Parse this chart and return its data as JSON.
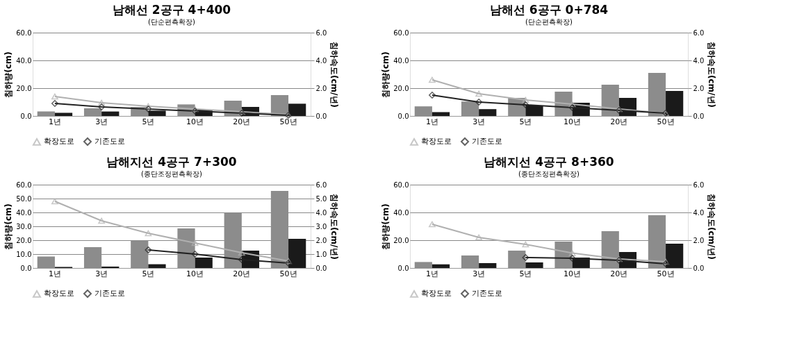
{
  "chart_data": [
    {
      "type": "bar",
      "title": "남해선 2공구 4+400",
      "subtitle": "(단순편측확장)",
      "ylabel": "침하량(cm)",
      "y2label": "침하속도(cm/년)",
      "categories": [
        "1년",
        "3년",
        "5년",
        "10년",
        "20년",
        "50년"
      ],
      "ylim": [
        0,
        60
      ],
      "yticks": [
        {
          "value": 0,
          "label": "0.0"
        },
        {
          "value": 20,
          "label": "20.0"
        },
        {
          "value": 40,
          "label": "40.0"
        },
        {
          "value": 60,
          "label": "60.0"
        }
      ],
      "y2lim": [
        0,
        6
      ],
      "y2ticks": [
        {
          "value": 0,
          "label": "0.0"
        },
        {
          "value": 2,
          "label": "2.0"
        },
        {
          "value": 4,
          "label": "4.0"
        },
        {
          "value": 6,
          "label": "6.0"
        }
      ],
      "grid": "y",
      "legend": "bottom",
      "series": [
        {
          "type": "bar",
          "color": "#8c8c8c",
          "values": [
            3.2,
            5.5,
            6.4,
            8.3,
            11.0,
            15.0
          ]
        },
        {
          "type": "bar",
          "color": "#1a1a1a",
          "values": [
            2.2,
            3.2,
            3.8,
            4.5,
            6.5,
            8.8
          ]
        },
        {
          "type": "line",
          "axis": "y2",
          "name": "확장도로",
          "color": "#b0b0b0",
          "marker": "triangle",
          "values": [
            1.4,
            0.95,
            0.7,
            0.5,
            0.3,
            0.1
          ]
        },
        {
          "type": "line",
          "axis": "y2",
          "name": "기존도로",
          "color": "#222222",
          "marker": "diamond",
          "values": [
            0.9,
            0.65,
            0.5,
            0.35,
            0.2,
            0.05
          ]
        }
      ]
    },
    {
      "type": "bar",
      "title": "남해선 6공구 0+784",
      "subtitle": "(단순편측확장)",
      "ylabel": "침하량(cm)",
      "y2label": "침하속도(cm/년)",
      "categories": [
        "1년",
        "3년",
        "5년",
        "10년",
        "20년",
        "50년"
      ],
      "ylim": [
        0,
        60
      ],
      "yticks": [
        {
          "value": 0,
          "label": "0.0"
        },
        {
          "value": 20,
          "label": "20.0"
        },
        {
          "value": 40,
          "label": "40.0"
        },
        {
          "value": 60,
          "label": "60.0"
        }
      ],
      "y2lim": [
        0,
        6
      ],
      "y2ticks": [
        {
          "value": 0,
          "label": "0.0"
        },
        {
          "value": 2,
          "label": "2.0"
        },
        {
          "value": 4,
          "label": "4.0"
        },
        {
          "value": 6,
          "label": "6.0"
        }
      ],
      "grid": "y",
      "legend": "bottom",
      "series": [
        {
          "type": "bar",
          "color": "#8c8c8c",
          "values": [
            6.9,
            10.4,
            13.0,
            17.5,
            22.5,
            31.0
          ]
        },
        {
          "type": "bar",
          "color": "#1a1a1a",
          "values": [
            2.8,
            4.9,
            7.5,
            9.5,
            13.0,
            18.0
          ]
        },
        {
          "type": "line",
          "axis": "y2",
          "name": "확장도로",
          "color": "#b0b0b0",
          "marker": "triangle",
          "values": [
            2.6,
            1.6,
            1.15,
            0.85,
            0.5,
            0.2
          ]
        },
        {
          "type": "line",
          "axis": "y2",
          "name": "기존도로",
          "color": "#222222",
          "marker": "diamond",
          "values": [
            1.5,
            1.0,
            0.8,
            0.6,
            0.4,
            0.2
          ]
        }
      ]
    },
    {
      "type": "bar",
      "title": "남해지선 4공구 7+300",
      "subtitle": "(종단조정편측확장)",
      "ylabel": "침하량(cm)",
      "y2label": "침하속도(cm/년)",
      "categories": [
        "1년",
        "3년",
        "5년",
        "10년",
        "20년",
        "50년"
      ],
      "ylim": [
        0,
        60
      ],
      "yticks": [
        {
          "value": 0,
          "label": "0.0"
        },
        {
          "value": 10,
          "label": "10.0"
        },
        {
          "value": 20,
          "label": "20.0"
        },
        {
          "value": 30,
          "label": "30.0"
        },
        {
          "value": 40,
          "label": "40.0"
        },
        {
          "value": 50,
          "label": "50.0"
        },
        {
          "value": 60,
          "label": "60.0"
        }
      ],
      "y2lim": [
        0,
        6
      ],
      "y2ticks": [
        {
          "value": 0,
          "label": "0.0"
        },
        {
          "value": 1,
          "label": "1.0"
        },
        {
          "value": 2,
          "label": "2.0"
        },
        {
          "value": 3,
          "label": "3.0"
        },
        {
          "value": 4,
          "label": "4.0"
        },
        {
          "value": 5,
          "label": "5.0"
        },
        {
          "value": 6,
          "label": "6.0"
        }
      ],
      "grid": "y",
      "legend": "bottom",
      "series": [
        {
          "type": "bar",
          "color": "#8c8c8c",
          "values": [
            8.2,
            15.0,
            20.0,
            28.5,
            40.0,
            55.5
          ]
        },
        {
          "type": "bar",
          "color": "#1a1a1a",
          "values": [
            0.8,
            1.0,
            2.7,
            7.5,
            12.5,
            21.0
          ]
        },
        {
          "type": "line",
          "axis": "y2",
          "name": "확장도로",
          "color": "#b0b0b0",
          "marker": "triangle",
          "values": [
            4.8,
            3.4,
            2.5,
            1.8,
            1.1,
            0.5
          ]
        },
        {
          "type": "line",
          "axis": "y2",
          "name": "기존도로",
          "color": "#222222",
          "marker": "diamond",
          "values": [
            null,
            null,
            1.3,
            1.0,
            0.6,
            0.35
          ]
        }
      ]
    },
    {
      "type": "bar",
      "title": "남해지선 4공구 8+360",
      "subtitle": "(종단조정편측확장)",
      "ylabel": "침하량(cm)",
      "y2label": "침하속도(cm/년)",
      "categories": [
        "1년",
        "3년",
        "5년",
        "10년",
        "20년",
        "50년"
      ],
      "ylim": [
        0,
        60
      ],
      "yticks": [
        {
          "value": 0,
          "label": "0.0"
        },
        {
          "value": 20,
          "label": "20.0"
        },
        {
          "value": 40,
          "label": "40.0"
        },
        {
          "value": 60,
          "label": "60.0"
        }
      ],
      "y2lim": [
        0,
        6
      ],
      "y2ticks": [
        {
          "value": 0,
          "label": "0.0"
        },
        {
          "value": 2,
          "label": "2.0"
        },
        {
          "value": 4,
          "label": "4.0"
        },
        {
          "value": 6,
          "label": "6.0"
        }
      ],
      "grid": "y",
      "legend": "bottom",
      "series": [
        {
          "type": "bar",
          "color": "#8c8c8c",
          "values": [
            4.3,
            9.0,
            12.5,
            19.0,
            26.5,
            38.0
          ]
        },
        {
          "type": "bar",
          "color": "#1a1a1a",
          "values": [
            2.6,
            3.5,
            4.0,
            7.5,
            11.5,
            17.5
          ]
        },
        {
          "type": "line",
          "axis": "y2",
          "name": "확장도로",
          "color": "#b0b0b0",
          "marker": "triangle",
          "values": [
            3.15,
            2.2,
            1.7,
            1.07,
            0.65,
            0.45
          ]
        },
        {
          "type": "line",
          "axis": "y2",
          "name": "기존도로",
          "color": "#222222",
          "marker": "diamond",
          "values": [
            null,
            null,
            0.75,
            0.7,
            0.55,
            0.3
          ]
        }
      ]
    }
  ]
}
